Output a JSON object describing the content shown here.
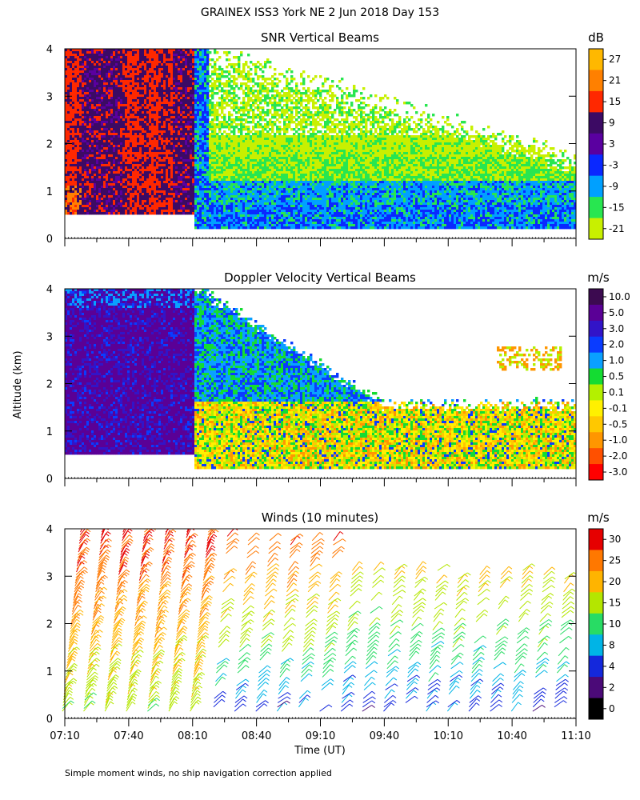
{
  "title": "GRAINEX ISS3 York NE   2 Jun 2018 Day 153",
  "ylabel": "Altitude (km)",
  "xlabel": "Time (UT)",
  "footnote": "Simple moment winds, no ship navigation correction applied",
  "chart_data": [
    {
      "type": "heatmap",
      "title": "SNR Vertical Beams",
      "colorbar_unit": "dB",
      "x_range": [
        "07:10",
        "11:10"
      ],
      "ylim": [
        0,
        4
      ],
      "y_ticks": [
        "0",
        "1",
        "2",
        "3",
        "4"
      ],
      "colorbar": {
        "labels": [
          "27",
          "21",
          "15",
          "9",
          "3",
          "-3",
          "-9",
          "-15",
          "-21"
        ],
        "colors": [
          "#ffb800",
          "#ff8000",
          "#ff2800",
          "#3c0a64",
          "#5a00a0",
          "#0a28ff",
          "#00a0ff",
          "#28e650",
          "#c8f000"
        ]
      },
      "regions": [
        {
          "x": [
            "07:10",
            "08:12"
          ],
          "y": [
            0.5,
            4.0
          ],
          "value_range_db": [
            9,
            21
          ],
          "note": "strong signal, mixed purple and red-orange"
        },
        {
          "x": [
            "08:12",
            "11:10"
          ],
          "y": [
            0.2,
            1.2
          ],
          "value_range_db": [
            -15,
            3
          ],
          "note": "moderate signal, blue to green"
        },
        {
          "x": [
            "08:12",
            "09:20"
          ],
          "y": [
            1.2,
            4.0
          ],
          "value_range_db": [
            -21,
            -9
          ],
          "note": "weak signal, yellow-green"
        },
        {
          "x": [
            "09:20",
            "11:10"
          ],
          "y": [
            1.2,
            2.6
          ],
          "value_range_db": [
            -21,
            -15
          ],
          "note": "weak signal, yellow-green"
        }
      ]
    },
    {
      "type": "heatmap",
      "title": "Doppler Velocity Vertical Beams",
      "colorbar_unit": "m/s",
      "x_range": [
        "07:10",
        "11:10"
      ],
      "ylim": [
        0,
        4
      ],
      "y_ticks": [
        "0",
        "1",
        "2",
        "3",
        "4"
      ],
      "colorbar": {
        "labels": [
          "10.0",
          "5.0",
          "3.0",
          "2.0",
          "1.0",
          "0.5",
          "0.1",
          "-0.1",
          "-0.5",
          "-1.0",
          "-2.0",
          "-3.0"
        ],
        "colors": [
          "#3c0a50",
          "#5a0096",
          "#3214c8",
          "#0a3cff",
          "#0aa0ff",
          "#14dc32",
          "#b4f000",
          "#fff000",
          "#ffc800",
          "#ff9600",
          "#ff5000",
          "#ff0000"
        ]
      },
      "regions": [
        {
          "x": [
            "07:10",
            "08:12"
          ],
          "y": [
            0.5,
            4.0
          ],
          "value_range_ms": [
            3.0,
            5.0
          ],
          "note": "purple / blue"
        },
        {
          "x": [
            "08:12",
            "11:10"
          ],
          "y": [
            0.2,
            1.5
          ],
          "value_range_ms": [
            -1.0,
            0.5
          ],
          "note": "yellow-orange with green"
        },
        {
          "x": [
            "08:12",
            "09:00"
          ],
          "y": [
            1.5,
            4.0
          ],
          "value_range_ms": [
            0.5,
            2.0
          ],
          "note": "green / blue patches"
        }
      ]
    },
    {
      "type": "other",
      "title": "Winds (10 minutes)",
      "colorbar_unit": "m/s",
      "x_range": [
        "07:10",
        "11:10"
      ],
      "ylim": [
        0,
        4
      ],
      "y_ticks": [
        "0",
        "1",
        "2",
        "3",
        "4"
      ],
      "colorbar": {
        "labels": [
          "30",
          "25",
          "20",
          "15",
          "10",
          "8",
          "4",
          "2",
          "0"
        ],
        "colors": [
          "#e60000",
          "#ff7800",
          "#ffb400",
          "#b4e600",
          "#28dc64",
          "#00b4e6",
          "#1428dc",
          "#4b0a78",
          "#000000"
        ]
      },
      "speed_by_altitude": [
        {
          "x": [
            "07:10",
            "08:20"
          ],
          "alt_km": [
            0.2,
            4.0
          ],
          "speed_ms": [
            15,
            30
          ]
        },
        {
          "x": [
            "08:20",
            "09:20"
          ],
          "alt_km": [
            0.2,
            4.0
          ],
          "speed_ms": [
            4,
            28
          ]
        },
        {
          "x": [
            "09:20",
            "11:10"
          ],
          "alt_km": [
            0.2,
            3.5
          ],
          "speed_ms": [
            4,
            20
          ]
        }
      ]
    }
  ],
  "x_ticks": [
    "07:10",
    "07:40",
    "08:10",
    "08:40",
    "09:10",
    "09:40",
    "10:10",
    "10:40",
    "11:10"
  ]
}
